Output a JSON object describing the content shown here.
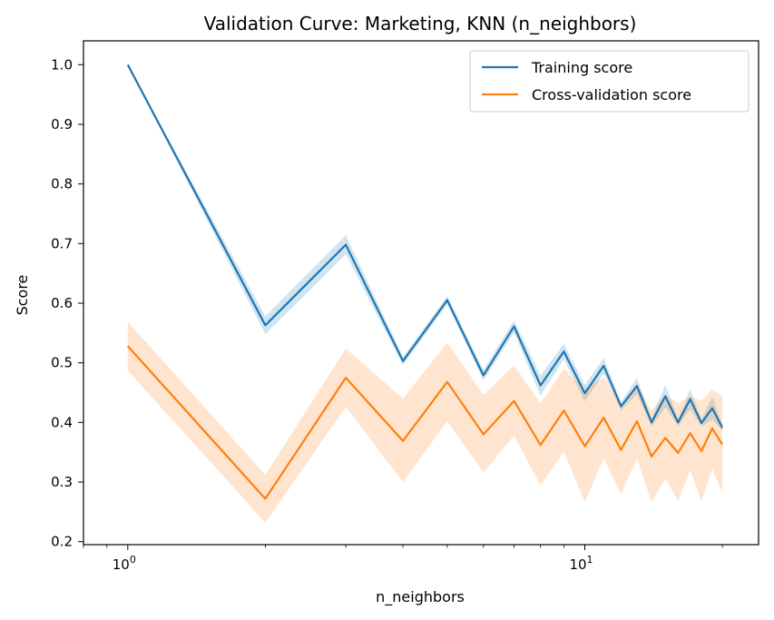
{
  "chart_data": {
    "type": "line",
    "title": "Validation Curve: Marketing, KNN (n_neighbors)",
    "xlabel": "n_neighbors",
    "ylabel": "Score",
    "xscale": "log",
    "xlim": [
      0.8,
      24
    ],
    "ylim": [
      0.195,
      1.04
    ],
    "x": [
      1,
      2,
      3,
      4,
      5,
      6,
      7,
      8,
      9,
      10,
      11,
      12,
      13,
      14,
      15,
      16,
      17,
      18,
      19,
      20
    ],
    "x_ticks": [
      {
        "value": 1,
        "base": "10",
        "exp": "0"
      },
      {
        "value": 10,
        "base": "10",
        "exp": "1"
      }
    ],
    "y_ticks": [
      "0.2",
      "0.3",
      "0.4",
      "0.5",
      "0.6",
      "0.7",
      "0.8",
      "0.9",
      "1.0"
    ],
    "grid": false,
    "legend_position": "top-right",
    "series": [
      {
        "name": "Training score",
        "color": "#1f77b4",
        "band_color": "#1f77b4",
        "values": [
          1.0,
          0.563,
          0.698,
          0.503,
          0.605,
          0.479,
          0.561,
          0.462,
          0.519,
          0.449,
          0.495,
          0.427,
          0.461,
          0.4,
          0.444,
          0.4,
          0.439,
          0.399,
          0.424,
          0.391
        ],
        "lower": [
          1.0,
          0.548,
          0.682,
          0.496,
          0.598,
          0.47,
          0.551,
          0.445,
          0.506,
          0.435,
          0.482,
          0.42,
          0.447,
          0.393,
          0.425,
          0.394,
          0.422,
          0.393,
          0.405,
          0.385
        ],
        "upper": [
          1.0,
          0.578,
          0.714,
          0.51,
          0.612,
          0.488,
          0.571,
          0.479,
          0.532,
          0.463,
          0.508,
          0.434,
          0.475,
          0.407,
          0.463,
          0.406,
          0.456,
          0.405,
          0.443,
          0.397
        ]
      },
      {
        "name": "Cross-validation score",
        "color": "#ff7f0e",
        "band_color": "#ff7f0e",
        "values": [
          0.528,
          0.272,
          0.475,
          0.369,
          0.468,
          0.38,
          0.436,
          0.362,
          0.42,
          0.36,
          0.408,
          0.354,
          0.402,
          0.343,
          0.374,
          0.349,
          0.382,
          0.352,
          0.39,
          0.363
        ],
        "lower": [
          0.487,
          0.232,
          0.426,
          0.3,
          0.402,
          0.316,
          0.378,
          0.294,
          0.351,
          0.266,
          0.34,
          0.28,
          0.34,
          0.266,
          0.306,
          0.268,
          0.32,
          0.268,
          0.322,
          0.282
        ],
        "upper": [
          0.569,
          0.312,
          0.524,
          0.44,
          0.534,
          0.446,
          0.496,
          0.432,
          0.49,
          0.456,
          0.476,
          0.428,
          0.466,
          0.42,
          0.446,
          0.432,
          0.444,
          0.437,
          0.456,
          0.444
        ]
      }
    ]
  }
}
